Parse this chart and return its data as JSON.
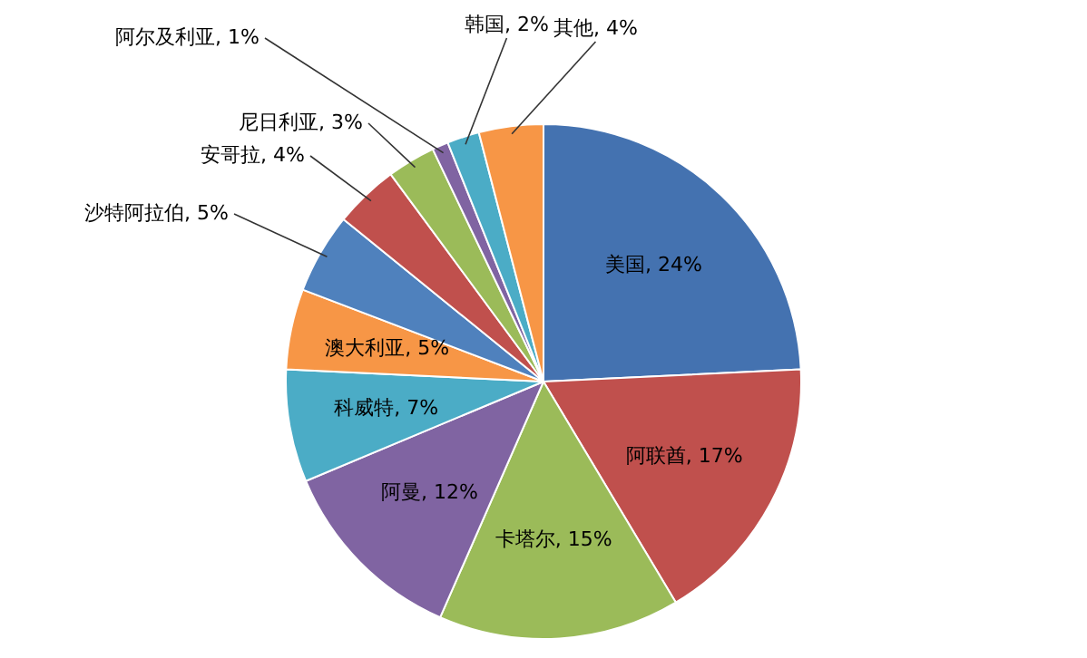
{
  "chart_data": {
    "type": "pie",
    "categories": [
      "美国",
      "阿联酋",
      "卡塔尔",
      "阿曼",
      "科威特",
      "澳大利亚",
      "沙特阿拉伯",
      "安哥拉",
      "尼日利亚",
      "阿尔及利亚",
      "韩国",
      "其他"
    ],
    "values": [
      24,
      17,
      15,
      12,
      7,
      5,
      5,
      4,
      3,
      1,
      2,
      4
    ],
    "value_labels": [
      "24%",
      "17%",
      "15%",
      "12%",
      "7%",
      "5%",
      "5%",
      "4%",
      "3%",
      "1%",
      "2%",
      "4%"
    ],
    "colors": [
      "#4472b0",
      "#c0504d",
      "#9bbb59",
      "#8064a2",
      "#4bacc6",
      "#f79646",
      "#4f81bd",
      "#c0504d",
      "#9bbb59",
      "#8064a2",
      "#4bacc6",
      "#f79646"
    ],
    "legend": false
  }
}
